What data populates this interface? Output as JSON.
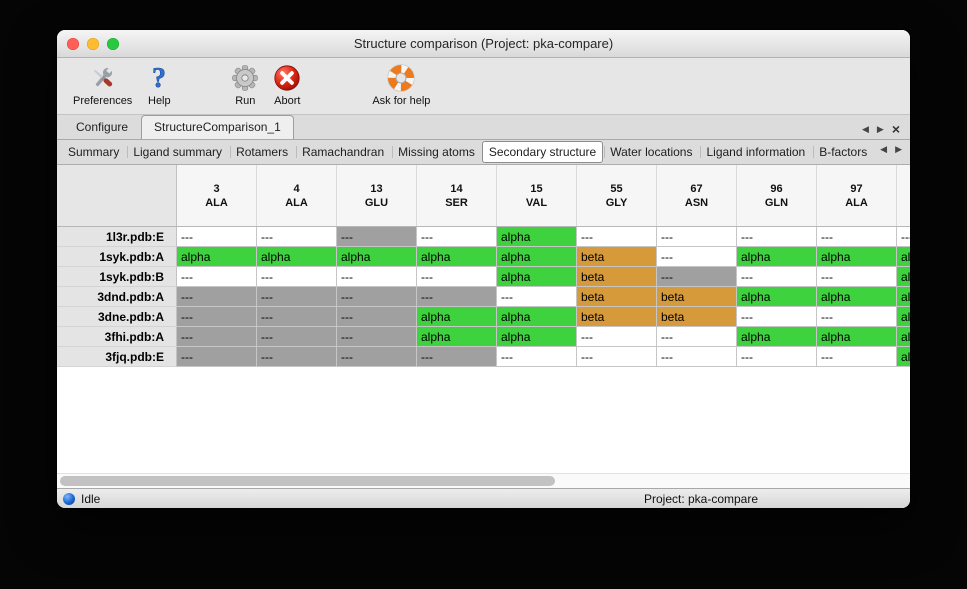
{
  "window": {
    "title": "Structure comparison (Project: pka-compare)"
  },
  "toolbar": {
    "items": [
      {
        "label": "Preferences",
        "icon": "tools-icon"
      },
      {
        "label": "Help",
        "icon": "question-mark-icon"
      },
      {
        "label": "Run",
        "icon": "gear-icon"
      },
      {
        "label": "Abort",
        "icon": "abort-icon"
      },
      {
        "label": "Ask for help",
        "icon": "lifebuoy-icon"
      }
    ]
  },
  "doc_tabs": {
    "tabs": [
      {
        "label": "Configure",
        "active": false
      },
      {
        "label": "StructureComparison_1",
        "active": true
      }
    ],
    "controls": [
      {
        "icon": "arrow-left-icon"
      },
      {
        "icon": "arrow-right-icon"
      },
      {
        "icon": "close-icon"
      }
    ]
  },
  "view_tabs": {
    "tabs": [
      {
        "label": "Summary",
        "active": false
      },
      {
        "label": "Ligand summary",
        "active": false
      },
      {
        "label": "Rotamers",
        "active": false
      },
      {
        "label": "Ramachandran",
        "active": false
      },
      {
        "label": "Missing atoms",
        "active": false
      },
      {
        "label": "Secondary structure",
        "active": true
      },
      {
        "label": "Water locations",
        "active": false
      },
      {
        "label": "Ligand information",
        "active": false
      },
      {
        "label": "B-factors",
        "active": false
      }
    ],
    "controls": [
      {
        "icon": "arrow-left-icon"
      },
      {
        "icon": "arrow-right-icon"
      }
    ]
  },
  "table": {
    "columns": [
      {
        "num": "3",
        "res": "ALA"
      },
      {
        "num": "4",
        "res": "ALA"
      },
      {
        "num": "13",
        "res": "GLU"
      },
      {
        "num": "14",
        "res": "SER"
      },
      {
        "num": "15",
        "res": "VAL"
      },
      {
        "num": "55",
        "res": "GLY"
      },
      {
        "num": "67",
        "res": "ASN"
      },
      {
        "num": "96",
        "res": "GLN"
      },
      {
        "num": "97",
        "res": "ALA"
      },
      {
        "num": "",
        "res": ""
      }
    ],
    "rows": [
      {
        "label": "1l3r.pdb:E",
        "cells": [
          {
            "text": "---",
            "type": "white"
          },
          {
            "text": "---",
            "type": "white"
          },
          {
            "text": "---",
            "type": "gray"
          },
          {
            "text": "---",
            "type": "white"
          },
          {
            "text": "alpha",
            "type": "alpha"
          },
          {
            "text": "---",
            "type": "white"
          },
          {
            "text": "---",
            "type": "white"
          },
          {
            "text": "---",
            "type": "white"
          },
          {
            "text": "---",
            "type": "white"
          },
          {
            "text": "---",
            "type": "white"
          }
        ]
      },
      {
        "label": "1syk.pdb:A",
        "cells": [
          {
            "text": "alpha",
            "type": "alpha"
          },
          {
            "text": "alpha",
            "type": "alpha"
          },
          {
            "text": "alpha",
            "type": "alpha"
          },
          {
            "text": "alpha",
            "type": "alpha"
          },
          {
            "text": "alpha",
            "type": "alpha"
          },
          {
            "text": "beta",
            "type": "beta"
          },
          {
            "text": "---",
            "type": "white"
          },
          {
            "text": "alpha",
            "type": "alpha"
          },
          {
            "text": "alpha",
            "type": "alpha"
          },
          {
            "text": "alpha",
            "type": "alpha"
          }
        ]
      },
      {
        "label": "1syk.pdb:B",
        "cells": [
          {
            "text": "---",
            "type": "white"
          },
          {
            "text": "---",
            "type": "white"
          },
          {
            "text": "---",
            "type": "white"
          },
          {
            "text": "---",
            "type": "white"
          },
          {
            "text": "alpha",
            "type": "alpha"
          },
          {
            "text": "beta",
            "type": "beta"
          },
          {
            "text": "---",
            "type": "gray"
          },
          {
            "text": "---",
            "type": "white"
          },
          {
            "text": "---",
            "type": "white"
          },
          {
            "text": "alpha",
            "type": "alpha"
          }
        ]
      },
      {
        "label": "3dnd.pdb:A",
        "cells": [
          {
            "text": "---",
            "type": "gray"
          },
          {
            "text": "---",
            "type": "gray"
          },
          {
            "text": "---",
            "type": "gray"
          },
          {
            "text": "---",
            "type": "gray"
          },
          {
            "text": "---",
            "type": "white"
          },
          {
            "text": "beta",
            "type": "beta"
          },
          {
            "text": "beta",
            "type": "beta"
          },
          {
            "text": "alpha",
            "type": "alpha"
          },
          {
            "text": "alpha",
            "type": "alpha"
          },
          {
            "text": "alpha",
            "type": "alpha"
          }
        ]
      },
      {
        "label": "3dne.pdb:A",
        "cells": [
          {
            "text": "---",
            "type": "gray"
          },
          {
            "text": "---",
            "type": "gray"
          },
          {
            "text": "---",
            "type": "gray"
          },
          {
            "text": "alpha",
            "type": "alpha"
          },
          {
            "text": "alpha",
            "type": "alpha"
          },
          {
            "text": "beta",
            "type": "beta"
          },
          {
            "text": "beta",
            "type": "beta"
          },
          {
            "text": "---",
            "type": "white"
          },
          {
            "text": "---",
            "type": "white"
          },
          {
            "text": "alpha",
            "type": "alpha"
          }
        ]
      },
      {
        "label": "3fhi.pdb:A",
        "cells": [
          {
            "text": "---",
            "type": "gray"
          },
          {
            "text": "---",
            "type": "gray"
          },
          {
            "text": "---",
            "type": "gray"
          },
          {
            "text": "alpha",
            "type": "alpha"
          },
          {
            "text": "alpha",
            "type": "alpha"
          },
          {
            "text": "---",
            "type": "white"
          },
          {
            "text": "---",
            "type": "white"
          },
          {
            "text": "alpha",
            "type": "alpha"
          },
          {
            "text": "alpha",
            "type": "alpha"
          },
          {
            "text": "alpha",
            "type": "alpha"
          }
        ]
      },
      {
        "label": "3fjq.pdb:E",
        "cells": [
          {
            "text": "---",
            "type": "gray"
          },
          {
            "text": "---",
            "type": "gray"
          },
          {
            "text": "---",
            "type": "gray"
          },
          {
            "text": "---",
            "type": "gray"
          },
          {
            "text": "---",
            "type": "white"
          },
          {
            "text": "---",
            "type": "white"
          },
          {
            "text": "---",
            "type": "white"
          },
          {
            "text": "---",
            "type": "white"
          },
          {
            "text": "---",
            "type": "white"
          },
          {
            "text": "alpha",
            "type": "alpha"
          }
        ]
      }
    ]
  },
  "status_bar": {
    "status": "Idle",
    "project": "Project: pka-compare"
  },
  "colors": {
    "alpha": "#3fd23f",
    "beta": "#d79a3b",
    "missing": "#a0a0a0",
    "accent": "#2f6fd0"
  }
}
